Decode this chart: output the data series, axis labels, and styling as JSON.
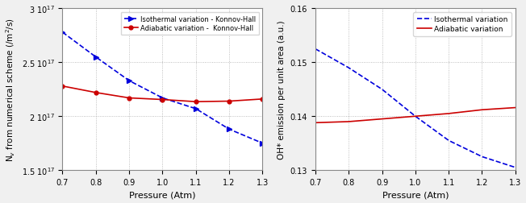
{
  "left": {
    "isothermal_x": [
      0.7,
      0.8,
      0.9,
      1.0,
      1.1,
      1.2,
      1.3
    ],
    "isothermal_y": [
      2.78e+17,
      2.55e+17,
      2.33e+17,
      2.17e+17,
      2.07e+17,
      1.88e+17,
      1.75e+17
    ],
    "adiabatic_x": [
      0.7,
      0.8,
      0.9,
      1.0,
      1.1,
      1.2,
      1.3
    ],
    "adiabatic_y": [
      2.28e+17,
      2.22e+17,
      2.17e+17,
      2.155e+17,
      2.135e+17,
      2.14e+17,
      2.16e+17
    ],
    "xlabel": "Pressure (Atm)",
    "ylabel": "N$_v$ from numerical scheme (/m$^2$/s)",
    "xlim": [
      0.7,
      1.3
    ],
    "ylim": [
      1.5e+17,
      3e+17
    ],
    "ytick_vals": [
      1.5e+17,
      2e+17,
      2.5e+17,
      3e+17
    ],
    "ytick_labels": [
      "1.5 $10^{17}$",
      "2 $10^{17}$",
      "2.5 $10^{17}$",
      "3 $10^{17}$"
    ],
    "xticks": [
      0.7,
      0.8,
      0.9,
      1.0,
      1.1,
      1.2,
      1.3
    ],
    "legend1": "Isothermal variation - Konnov-Hall",
    "legend2": "Adiabatic variation -  Konnov-Hall"
  },
  "right": {
    "isothermal_x": [
      0.7,
      0.8,
      0.9,
      1.0,
      1.1,
      1.2,
      1.3
    ],
    "isothermal_y": [
      0.1525,
      0.149,
      0.145,
      0.14,
      0.1355,
      0.1325,
      0.1305
    ],
    "adiabatic_x": [
      0.7,
      0.8,
      0.9,
      1.0,
      1.1,
      1.2,
      1.3
    ],
    "adiabatic_y": [
      0.1388,
      0.139,
      0.1395,
      0.14,
      0.1405,
      0.1412,
      0.1416
    ],
    "xlabel": "Pressure (Atm)",
    "ylabel": "OH* emission per unit area (a.u.)",
    "xlim": [
      0.7,
      1.3
    ],
    "ylim": [
      0.13,
      0.16
    ],
    "yticks": [
      0.13,
      0.14,
      0.15,
      0.16
    ],
    "xticks": [
      0.7,
      0.8,
      0.9,
      1.0,
      1.1,
      1.2,
      1.3
    ],
    "legend1": "Isothermal variation",
    "legend2": "Adiabatic variation"
  },
  "blue_color": "#0000dd",
  "red_color": "#cc0000",
  "grid_color": "#999999",
  "bg_color": "#f0f0f0",
  "plot_bg": "#ffffff"
}
